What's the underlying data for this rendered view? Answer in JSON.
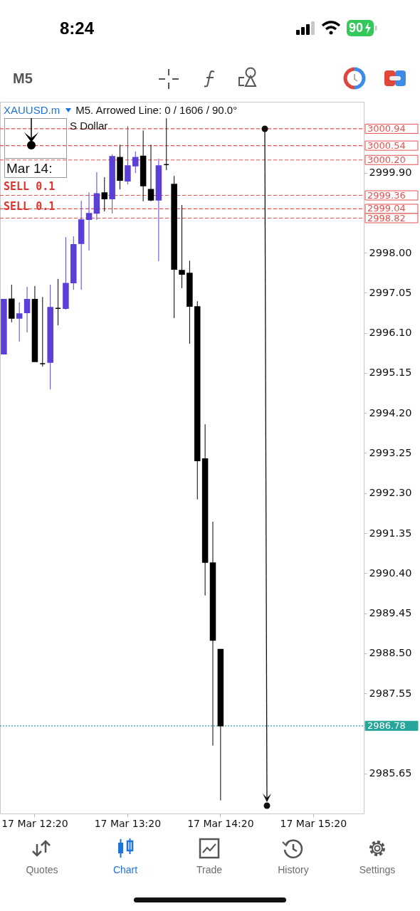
{
  "chart_data": {
    "type": "candlestick",
    "title": "XAUUSD.m",
    "subtitle": "M5. Arrowed Line: 0 / 1606 / 90.0°",
    "categories": [
      null,
      null,
      null,
      null,
      "17 Mar 12:20",
      null,
      null,
      null,
      null,
      null,
      null,
      null,
      null,
      null,
      null,
      null,
      "17 Mar 13:20",
      null,
      null,
      null,
      null,
      null,
      null,
      null,
      null,
      null,
      null,
      null,
      "17 Mar 14:20",
      null,
      null,
      null,
      null,
      null,
      null,
      null,
      null,
      null,
      null,
      null,
      "17 Mar 15:20",
      null,
      null,
      null,
      null,
      null,
      null
    ],
    "ohlc": [
      [
        2995.6,
        2996.89,
        2995.6,
        2996.89
      ],
      [
        2996.9,
        2997.24,
        2996.35,
        2996.45
      ],
      [
        2996.45,
        2996.82,
        2995.89,
        2996.55
      ],
      [
        2996.58,
        2997.19,
        2996.11,
        2996.89
      ],
      [
        2996.89,
        2997.21,
        2995.42,
        2995.42
      ],
      [
        2995.37,
        2996.95,
        2995.3,
        2995.37
      ],
      [
        2995.4,
        2997.24,
        2994.76,
        2996.7
      ],
      [
        2996.68,
        2997.38,
        2996.28,
        2996.68
      ],
      [
        2996.68,
        2998.37,
        2996.65,
        2997.27
      ],
      [
        2997.29,
        2998.39,
        2997.12,
        2998.19
      ],
      [
        2998.22,
        2999.23,
        2997.12,
        2998.78
      ],
      [
        2998.79,
        2999.43,
        2998.05,
        2998.93
      ],
      [
        2998.94,
        2999.91,
        2998.78,
        2999.4
      ],
      [
        2999.42,
        2999.79,
        2998.98,
        2999.28
      ],
      [
        2999.28,
        3000.33,
        2998.93,
        3000.28
      ],
      [
        3000.26,
        3000.56,
        2999.5,
        2999.72
      ],
      [
        2999.7,
        3001.0,
        2999.62,
        3000.06
      ],
      [
        3000.06,
        3000.4,
        2999.89,
        3000.26
      ],
      [
        3000.29,
        3000.9,
        2999.22,
        2999.59
      ],
      [
        2999.5,
        3000.56,
        2999.22,
        2999.25
      ],
      [
        2999.25,
        3000.23,
        2997.8,
        3000.06
      ],
      [
        3000.09,
        3001.19,
        2999.96,
        3000.09
      ],
      [
        2999.62,
        2999.82,
        2996.45,
        2997.61
      ],
      [
        2997.58,
        2999.13,
        2997.16,
        2997.49
      ],
      [
        2997.51,
        2997.81,
        2995.84,
        2996.73
      ],
      [
        2996.72,
        2996.85,
        2992.15,
        2993.07
      ],
      [
        2993.11,
        2993.93,
        2989.87,
        2990.66
      ],
      [
        2990.64,
        2991.62,
        2986.31,
        2988.81
      ],
      [
        2988.59,
        2988.59,
        2985.01,
        2986.78
      ],
      null,
      null,
      null,
      null,
      null,
      null,
      null,
      null,
      null,
      null,
      null,
      null,
      null,
      null,
      null,
      null,
      null,
      null
    ],
    "colors": [
      "#5b3fd6",
      "#000000",
      "#5b3fd6",
      "#5b3fd6",
      "#000000",
      "#000000",
      "#5b3fd6",
      "#000000",
      "#5b3fd6",
      "#5b3fd6",
      "#5b3fd6",
      "#5b3fd6",
      "#5b3fd6",
      "#000000",
      "#5b3fd6",
      "#000000",
      "#5b3fd6",
      "#5b3fd6",
      "#000000",
      "#000000",
      "#5b3fd6",
      "#000000",
      "#000000",
      "#000000",
      "#000000",
      "#000000",
      "#000000",
      "#000000",
      "#000000",
      null,
      null,
      null,
      null,
      null,
      null,
      null,
      null,
      null,
      null,
      null,
      null,
      null,
      null,
      null,
      null,
      null,
      null
    ],
    "ylim": [
      2984.7,
      3001.58
    ],
    "yticks": [
      {
        "value": 2999.9,
        "label": "2999.90"
      },
      {
        "value": 2998,
        "label": "2998.00"
      },
      {
        "value": 2997.05,
        "label": "2997.05"
      },
      {
        "value": 2996.1,
        "label": "2996.10"
      },
      {
        "value": 2995.15,
        "label": "2995.15"
      },
      {
        "value": 2994.2,
        "label": "2994.20"
      },
      {
        "value": 2993.25,
        "label": "2993.25"
      },
      {
        "value": 2992.3,
        "label": "2992.30"
      },
      {
        "value": 2991.35,
        "label": "2991.35"
      },
      {
        "value": 2990.4,
        "label": "2990.40"
      },
      {
        "value": 2989.45,
        "label": "2989.45"
      },
      {
        "value": 2988.5,
        "label": "2988.50"
      },
      {
        "value": 2987.55,
        "label": "2987.55"
      },
      {
        "value": 2985.65,
        "label": "2985.65"
      }
    ],
    "ref_lines": [
      {
        "axis": "y",
        "value": 3000.94,
        "label": "3000.94",
        "color": "#e0524f",
        "line_style": "dashed"
      },
      {
        "axis": "y",
        "value": 3000.54,
        "label": "3000.54",
        "color": "#e0524f",
        "line_style": "dashed"
      },
      {
        "axis": "y",
        "value": 3000.2,
        "label": "3000.20",
        "color": "#e0524f",
        "line_style": "dashed"
      },
      {
        "axis": "y",
        "value": 2999.36,
        "label": "2999.36",
        "color": "#e0524f",
        "line_style": "dashed"
      },
      {
        "axis": "y",
        "value": 2999.04,
        "label": "2999.04",
        "color": "#e0524f",
        "line_style": "dashed"
      },
      {
        "axis": "y",
        "value": 2998.82,
        "label": "2998.82",
        "color": "#e0524f",
        "line_style": "dashed"
      },
      {
        "axis": "y",
        "value": 2986.78,
        "label": "2986.78",
        "color": "#26a69a",
        "line_style": "dotted"
      }
    ],
    "annotations": [
      "SELL 0.1",
      "SELL 0.1",
      "S Dollar",
      "Mar 14:",
      "8:24",
      "90",
      "M5",
      "Quotes",
      "Chart",
      "Trade",
      "History",
      "Settings"
    ]
  }
}
